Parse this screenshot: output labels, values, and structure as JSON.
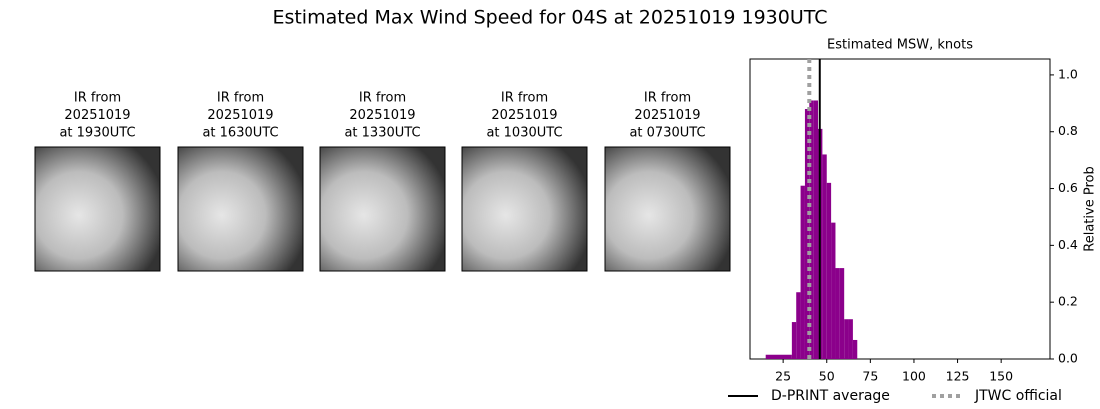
{
  "title": "Estimated Max Wind Speed for 04S at 20251019 1930UTC",
  "panels": [
    {
      "lines": [
        "IR from",
        "20251019",
        "at 1930UTC"
      ]
    },
    {
      "lines": [
        "IR from",
        "20251019",
        "at 1630UTC"
      ]
    },
    {
      "lines": [
        "IR from",
        "20251019",
        "at 1330UTC"
      ]
    },
    {
      "lines": [
        "IR from",
        "20251019",
        "at 1030UTC"
      ]
    },
    {
      "lines": [
        "IR from",
        "20251019",
        "at 0730UTC"
      ]
    }
  ],
  "chart_data": {
    "type": "histogram",
    "title": "Estimated MSW, knots",
    "ylabel": "Relative Prob",
    "bins": [
      15,
      30,
      32.5,
      35,
      37.5,
      40,
      42.5,
      45,
      47.5,
      50,
      52.5,
      55,
      57.5,
      60,
      62.5,
      65,
      67.5
    ],
    "values": [
      0.015,
      0.13,
      0.235,
      0.61,
      0.88,
      0.91,
      0.91,
      0.81,
      0.72,
      0.62,
      0.48,
      0.32,
      0.32,
      0.14,
      0.14,
      0.067
    ],
    "color": "#8b008b",
    "xlim": [
      6,
      178
    ],
    "xticks": [
      25,
      50,
      75,
      100,
      125,
      150
    ],
    "ylim": [
      0,
      1.056
    ],
    "yticks": [
      {
        "value": 0,
        "label": "0.0"
      },
      0.2,
      0.4,
      0.6,
      0.8,
      {
        "value": 1,
        "label": "1.0"
      }
    ],
    "lines": [
      {
        "name": "D-PRINT average",
        "value": 46,
        "color": "#000000",
        "style": "solid"
      },
      {
        "name": "JTWC official",
        "value": 40,
        "color": "#a0a0a0",
        "style": "dotted"
      }
    ]
  }
}
